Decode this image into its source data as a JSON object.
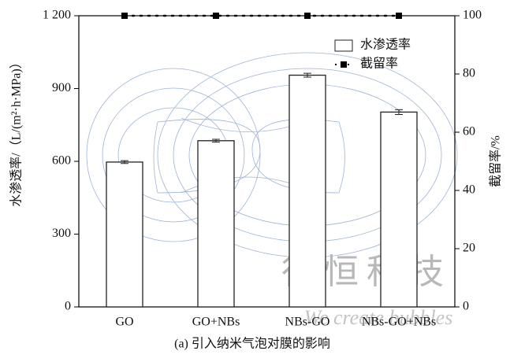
{
  "chart_data": {
    "type": "bar",
    "caption": "(a) 引入纳米气泡对膜的影响",
    "ylabel": "水渗透率/（L/(m²·h·MPa)）",
    "y2label": "截留率/%",
    "categories": [
      "GO",
      "GO+NBs",
      "NBs-GO",
      "NBs-GO+NBs"
    ],
    "series": [
      {
        "name": "水渗透率",
        "color": "#222222",
        "values": [
          597,
          685,
          955,
          803
        ],
        "errors": [
          6,
          6,
          8,
          10
        ]
      },
      {
        "name": "截留率",
        "color": "#000000",
        "axis": "y2",
        "values": [
          100,
          100,
          100,
          100
        ]
      }
    ],
    "ylim": [
      0,
      1200
    ],
    "yticks": [
      0,
      300,
      600,
      900,
      {
        "value": 1200,
        "label": "1 200"
      }
    ],
    "y2lim": [
      0,
      100
    ],
    "y2ticks": [
      0,
      20,
      40,
      60,
      80,
      100
    ],
    "annotations": [
      "行恒科技",
      "We create bubbles"
    ]
  }
}
